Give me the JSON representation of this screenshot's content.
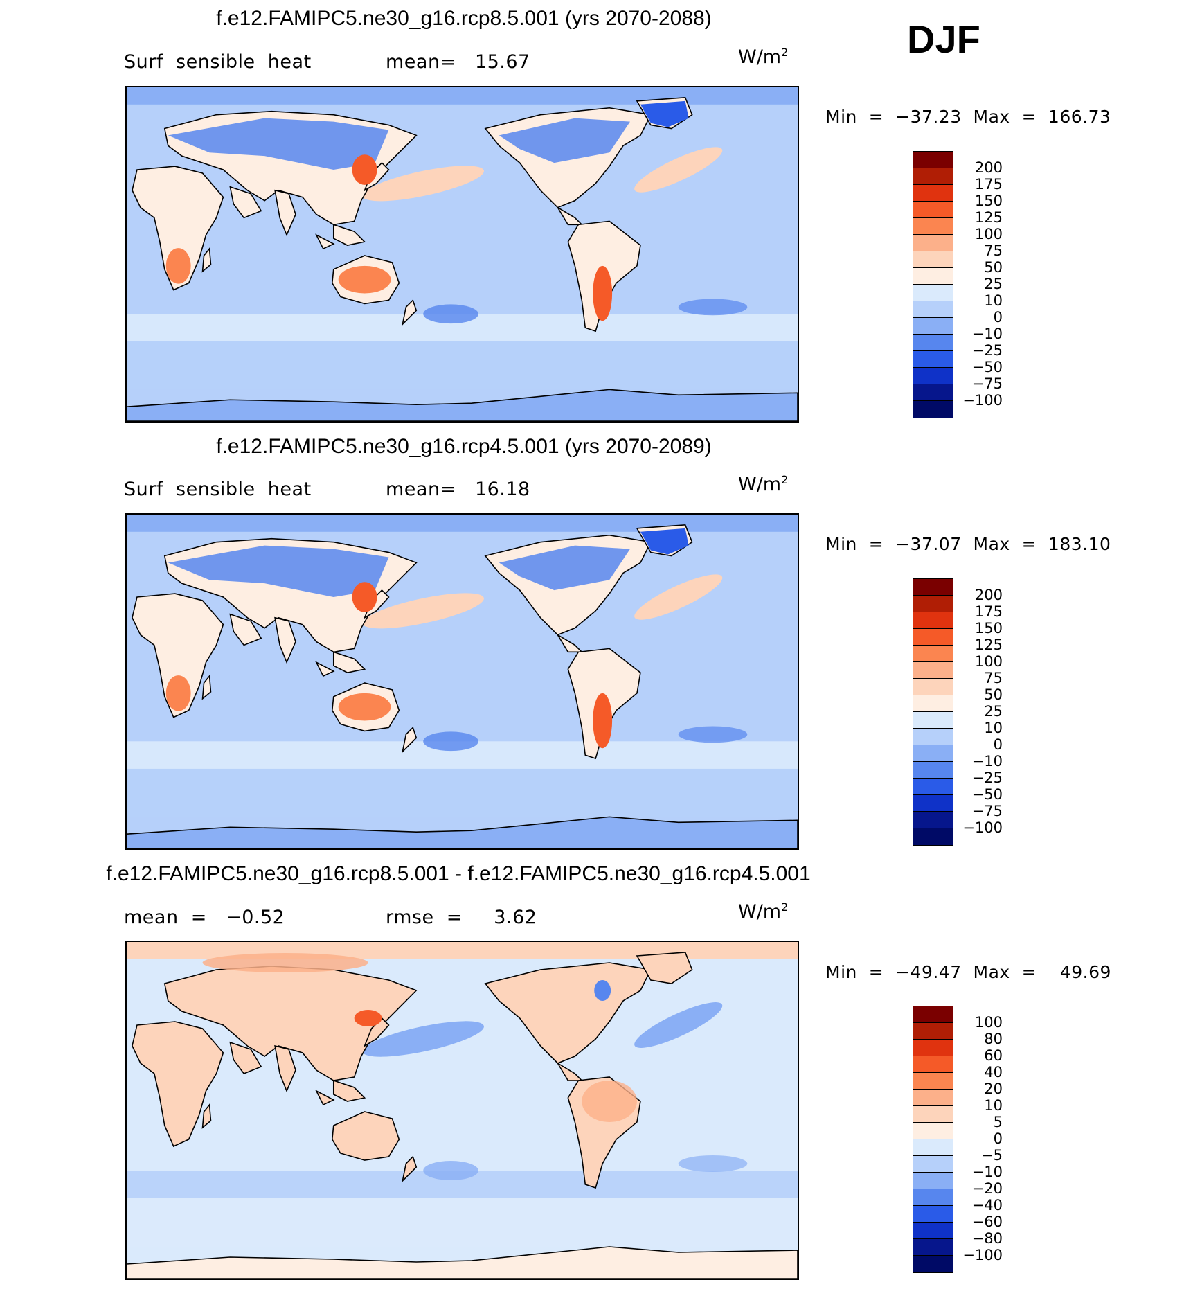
{
  "season": "DJF",
  "units": "W/m",
  "units_sup": "2",
  "panels": [
    {
      "title": "f.e12.FAMIPC5.ne30_g16.rcp8.5.001 (yrs 2070-2088)",
      "sub_left": "Surf  sensible  heat",
      "sub_right": "mean=   15.67",
      "minmax": "Min  =  −37.23  Max  =  166.73",
      "palette": "abs"
    },
    {
      "title": "f.e12.FAMIPC5.ne30_g16.rcp4.5.001 (yrs 2070-2089)",
      "sub_left": "Surf  sensible  heat",
      "sub_right": "mean=   16.18",
      "minmax": "Min  =  −37.07  Max  =  183.10",
      "palette": "abs"
    },
    {
      "title": "f.e12.FAMIPC5.ne30_g16.rcp8.5.001 - f.e12.FAMIPC5.ne30_g16.rcp4.5.001",
      "sub_left": "mean  =   −0.52",
      "sub_right": "rmse  =     3.62",
      "minmax": "Min  =  −49.47  Max  =    49.69",
      "palette": "diff"
    }
  ],
  "colorbars": {
    "abs": {
      "labels": [
        "200",
        "175",
        "150",
        "125",
        "100",
        "75",
        "50",
        "25",
        "10",
        "0",
        "−10",
        "−25",
        "−50",
        "−75",
        "−100"
      ],
      "colors": [
        "#7a0000",
        "#b01e05",
        "#e0330f",
        "#f55a28",
        "#fb8550",
        "#fcb08a",
        "#fdd4bb",
        "#feeee2",
        "#daeafc",
        "#b6d0fa",
        "#8aaff5",
        "#5786ee",
        "#2a5be8",
        "#0f32c8",
        "#06168c",
        "#000a66"
      ]
    },
    "diff": {
      "labels": [
        "100",
        "80",
        "60",
        "40",
        "20",
        "10",
        "5",
        "0",
        "−5",
        "−10",
        "−20",
        "−40",
        "−60",
        "−80",
        "−100"
      ],
      "colors": [
        "#7a0000",
        "#b01e05",
        "#e0330f",
        "#f55a28",
        "#fb8550",
        "#fcb08a",
        "#fdd4bb",
        "#feeee2",
        "#daeafc",
        "#b6d0fa",
        "#8aaff5",
        "#5786ee",
        "#2a5be8",
        "#0f32c8",
        "#06168c",
        "#000a66"
      ]
    }
  }
}
